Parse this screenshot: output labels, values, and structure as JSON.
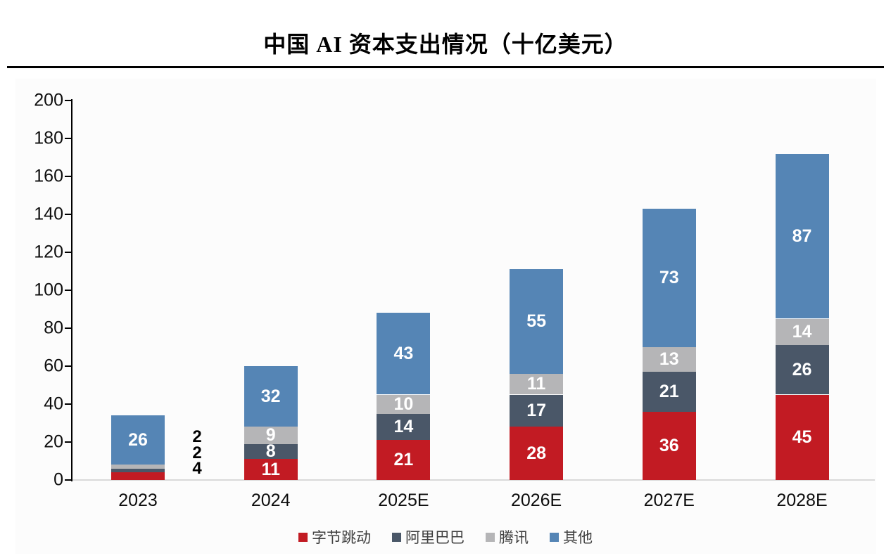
{
  "header": {
    "title": "中国 AI 资本支出情况（十亿美元）"
  },
  "chart_data": {
    "type": "bar",
    "stacked": true,
    "title": "中国 AI 资本支出情况（十亿美元）",
    "unit": "十亿美元",
    "categories": [
      "2023",
      "2024",
      "2025E",
      "2026E",
      "2027E",
      "2028E"
    ],
    "series": [
      {
        "name": "字节跳动",
        "color": "#c21b23",
        "values": [
          4,
          11,
          21,
          28,
          36,
          45
        ]
      },
      {
        "name": "阿里巴巴",
        "color": "#4a5768",
        "values": [
          2,
          8,
          14,
          17,
          21,
          26
        ]
      },
      {
        "name": "腾讯",
        "color": "#b5b5b7",
        "values": [
          2,
          9,
          10,
          11,
          13,
          14
        ]
      },
      {
        "name": "其他",
        "color": "#5585b5",
        "values": [
          26,
          32,
          43,
          55,
          73,
          87
        ]
      }
    ],
    "ylim": [
      0,
      200
    ],
    "yticks": [
      0,
      20,
      40,
      60,
      80,
      100,
      120,
      140,
      160,
      180,
      200
    ],
    "grid": false,
    "legend_position": "bottom",
    "axis_color": "#000000",
    "baseline_color": "#d9d9d9",
    "data_label_color_inside": "#ffffff",
    "data_label_color_outside": "#000000",
    "outside_label_categories": [
      "2023"
    ],
    "outside_label_series": [
      "字节跳动",
      "阿里巴巴",
      "腾讯"
    ]
  }
}
